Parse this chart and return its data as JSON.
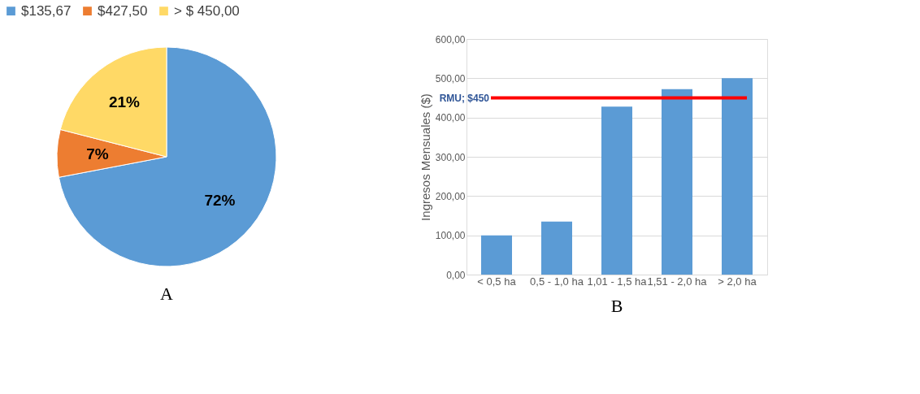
{
  "chart_data": [
    {
      "type": "pie",
      "categories": [
        "$135,67",
        "$427,50",
        "> $ 450,00"
      ],
      "values": [
        72,
        7,
        21
      ],
      "colors": [
        "#5b9bd5",
        "#ed7d31",
        "#ffd966"
      ],
      "value_labels": [
        "72%",
        "7%",
        "21%"
      ],
      "legend": "top",
      "annotations": [
        "A"
      ]
    },
    {
      "type": "bar",
      "categories": [
        "< 0,5 ha",
        "0,5 - 1,0 ha",
        "1,01 - 1,5 ha",
        "1,51 - 2,0 ha",
        "> 2,0 ha"
      ],
      "values": [
        100,
        135,
        428,
        472,
        500
      ],
      "color": "#5b9bd5",
      "ylabel": "Ingresos Mensuales ($)",
      "ylim": [
        0,
        600
      ],
      "yticks": [
        {
          "value": 0,
          "label": "0,00"
        },
        {
          "value": 100,
          "label": "100,00"
        },
        {
          "value": 200,
          "label": "200,00"
        },
        {
          "value": 300,
          "label": "300,00"
        },
        {
          "value": 400,
          "label": "400,00"
        },
        {
          "value": 500,
          "label": "500,00"
        },
        {
          "value": 600,
          "label": "600,00"
        }
      ],
      "grid": "y",
      "ref_lines": [
        {
          "axis": "y",
          "value": 450,
          "label": "RMU; $450",
          "color": "#ff0000"
        }
      ],
      "annotations": [
        "B"
      ]
    }
  ]
}
